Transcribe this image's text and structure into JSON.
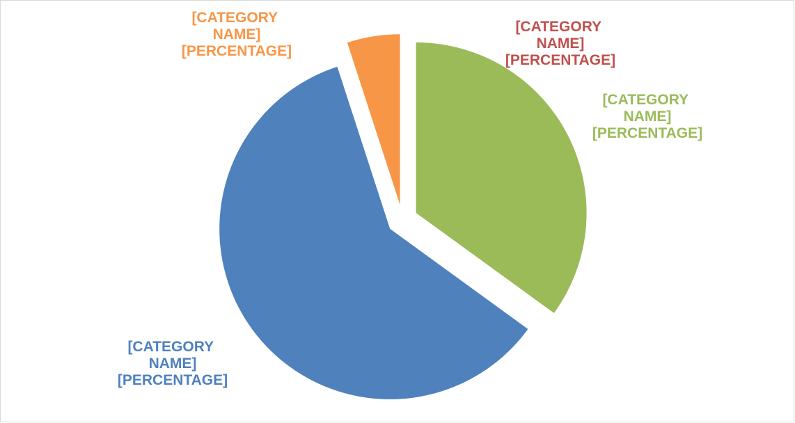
{
  "chart_data": {
    "type": "pie",
    "categories": [
      "[CATEGORY NAME]",
      "[CATEGORY NAME]",
      "[CATEGORY NAME]",
      "[CATEGORY NAME]"
    ],
    "values": [
      35,
      0,
      60,
      5
    ],
    "value_labels": [
      "[PERCENTAGE]",
      "[PERCENTAGE]",
      "[PERCENTAGE]",
      "[PERCENTAGE]"
    ],
    "colors": [
      "#9bbb59",
      "#c0504d",
      "#4f81bd",
      "#f79646"
    ],
    "exploded": [
      true,
      true,
      true,
      true
    ]
  }
}
